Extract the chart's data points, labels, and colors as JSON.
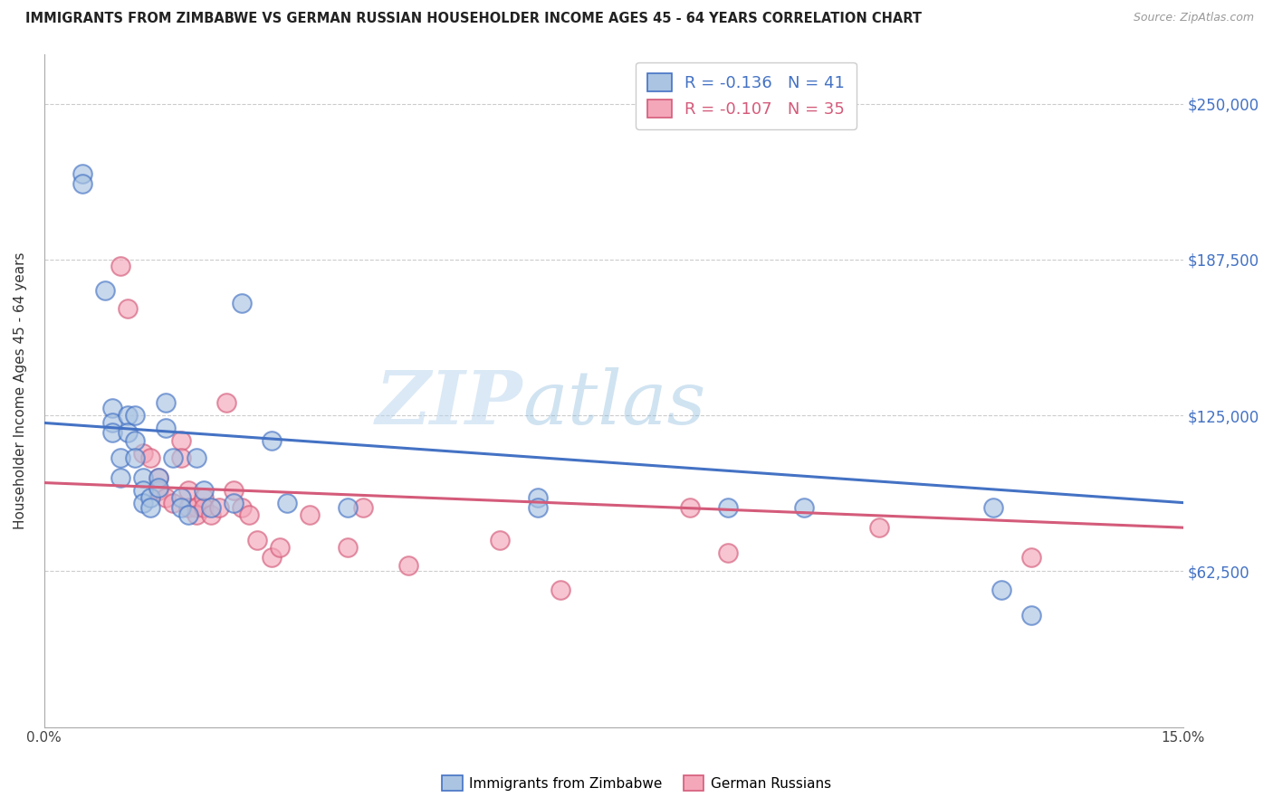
{
  "title": "IMMIGRANTS FROM ZIMBABWE VS GERMAN RUSSIAN HOUSEHOLDER INCOME AGES 45 - 64 YEARS CORRELATION CHART",
  "source": "Source: ZipAtlas.com",
  "ylabel": "Householder Income Ages 45 - 64 years",
  "xlim": [
    0.0,
    0.15
  ],
  "ylim": [
    0,
    270000
  ],
  "xticks": [
    0.0,
    0.03,
    0.06,
    0.09,
    0.12,
    0.15
  ],
  "xticklabels": [
    "0.0%",
    "",
    "",
    "",
    "",
    "15.0%"
  ],
  "yticks": [
    0,
    62500,
    125000,
    187500,
    250000
  ],
  "yticklabels": [
    "",
    "$62,500",
    "$125,000",
    "$187,500",
    "$250,000"
  ],
  "blue_R": "-0.136",
  "blue_N": "41",
  "pink_R": "-0.107",
  "pink_N": "35",
  "blue_color": "#aac4e2",
  "blue_line_color": "#4472c4",
  "pink_color": "#f4a7b9",
  "pink_line_color": "#d45b7a",
  "watermark_zip": "ZIP",
  "watermark_atlas": "atlas",
  "blue_scatter_x": [
    0.005,
    0.005,
    0.008,
    0.009,
    0.009,
    0.009,
    0.01,
    0.01,
    0.011,
    0.011,
    0.012,
    0.012,
    0.012,
    0.013,
    0.013,
    0.013,
    0.014,
    0.014,
    0.015,
    0.015,
    0.016,
    0.016,
    0.017,
    0.018,
    0.018,
    0.019,
    0.02,
    0.021,
    0.022,
    0.025,
    0.026,
    0.03,
    0.032,
    0.04,
    0.065,
    0.065,
    0.09,
    0.1,
    0.125,
    0.126,
    0.13
  ],
  "blue_scatter_y": [
    222000,
    218000,
    175000,
    128000,
    122000,
    118000,
    108000,
    100000,
    125000,
    118000,
    125000,
    115000,
    108000,
    100000,
    95000,
    90000,
    92000,
    88000,
    100000,
    96000,
    130000,
    120000,
    108000,
    92000,
    88000,
    85000,
    108000,
    95000,
    88000,
    90000,
    170000,
    115000,
    90000,
    88000,
    92000,
    88000,
    88000,
    88000,
    88000,
    55000,
    45000
  ],
  "pink_scatter_x": [
    0.01,
    0.011,
    0.013,
    0.014,
    0.015,
    0.015,
    0.016,
    0.017,
    0.018,
    0.018,
    0.019,
    0.019,
    0.02,
    0.02,
    0.021,
    0.021,
    0.022,
    0.023,
    0.024,
    0.025,
    0.026,
    0.027,
    0.028,
    0.03,
    0.031,
    0.035,
    0.04,
    0.042,
    0.048,
    0.06,
    0.068,
    0.085,
    0.09,
    0.11,
    0.13
  ],
  "pink_scatter_y": [
    185000,
    168000,
    110000,
    108000,
    100000,
    95000,
    92000,
    90000,
    115000,
    108000,
    95000,
    88000,
    88000,
    85000,
    92000,
    88000,
    85000,
    88000,
    130000,
    95000,
    88000,
    85000,
    75000,
    68000,
    72000,
    85000,
    72000,
    88000,
    65000,
    75000,
    55000,
    88000,
    70000,
    80000,
    68000
  ],
  "blue_line_y0": 122000,
  "blue_line_y1": 90000,
  "pink_line_y0": 98000,
  "pink_line_y1": 80000
}
